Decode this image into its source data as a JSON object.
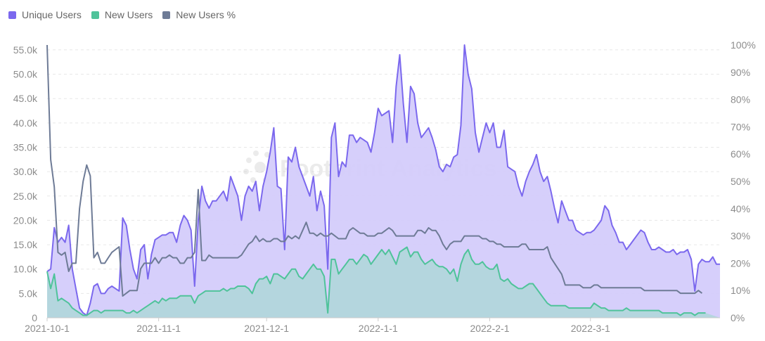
{
  "chart_data": {
    "type": "area",
    "series": [
      {
        "name": "Unique Users",
        "color": "#7b68ee",
        "fill": "#d4ccfb",
        "axis": "left",
        "values": [
          9.5,
          10,
          18.5,
          15.5,
          16.5,
          15.5,
          19,
          10,
          6,
          2,
          1,
          0.5,
          3,
          6.5,
          7,
          5,
          5,
          6,
          6.5,
          6,
          5.5,
          20.5,
          19,
          14,
          10,
          8,
          14,
          15,
          8,
          13,
          16,
          16.5,
          17,
          17,
          17.5,
          17.5,
          15.5,
          19,
          21,
          20,
          18,
          6.5,
          20,
          27,
          24,
          22.5,
          24,
          24,
          25,
          26,
          24,
          29,
          27,
          25,
          20,
          25,
          27,
          26,
          28,
          22,
          27,
          30,
          34,
          39,
          27,
          26.5,
          14,
          33,
          32,
          35,
          31,
          29,
          27,
          25,
          29,
          22,
          26,
          23,
          10,
          37,
          40,
          29,
          32,
          31,
          37.5,
          37.5,
          36,
          37,
          36.5,
          36,
          34,
          38,
          43,
          41.5,
          42,
          42.5,
          36,
          47.5,
          54,
          44,
          36,
          47.5,
          46,
          40,
          37,
          38,
          39,
          37,
          34.5,
          31,
          30,
          31.5,
          31,
          33,
          33.5,
          39.5,
          56,
          50,
          47,
          38,
          34,
          37,
          40,
          38,
          40,
          35,
          35,
          38.5,
          31,
          30.5,
          30,
          27,
          25,
          28,
          30,
          31.5,
          33.5,
          30,
          28,
          29,
          26,
          22.5,
          19.5,
          24,
          22,
          20,
          20,
          18,
          17.5,
          17,
          17.5,
          17.5,
          18,
          19,
          20,
          23,
          22,
          19,
          17.5,
          15.5,
          15.5,
          14,
          15,
          16,
          17,
          18,
          17.5,
          15.5,
          14,
          14,
          14.5,
          14,
          13.5,
          13.5,
          14,
          13,
          13.5,
          13.5,
          14,
          12,
          5.5,
          11,
          12,
          11.5,
          11.5,
          12.5,
          11,
          11
        ]
      },
      {
        "name": "New Users",
        "color": "#4fc39a",
        "fill": "#b2d6dc",
        "axis": "left",
        "values": [
          9.5,
          6,
          9,
          3.5,
          4,
          3.5,
          3,
          2,
          1.5,
          1,
          0.5,
          0.5,
          1,
          1.5,
          1.5,
          1,
          1.5,
          1.5,
          1.5,
          1.5,
          1.5,
          1.5,
          1,
          1,
          1.5,
          1,
          1.5,
          2,
          2.5,
          3,
          3.5,
          3,
          4,
          3.5,
          4,
          4,
          4,
          4.5,
          4.5,
          4.5,
          4.5,
          3,
          4.5,
          5,
          5.5,
          5.5,
          5.5,
          5.5,
          5.5,
          6,
          5.5,
          6,
          6,
          6.5,
          6.5,
          6.5,
          6,
          5,
          7,
          8,
          8,
          8.5,
          7,
          9,
          9,
          8.5,
          8,
          9,
          10,
          10,
          8.5,
          8,
          9,
          10,
          11,
          10,
          10,
          8.5,
          1,
          12,
          12,
          9,
          10,
          11,
          12,
          12,
          11,
          12,
          13,
          12.5,
          11,
          12,
          13,
          14,
          13,
          14,
          12.5,
          11,
          13.5,
          14,
          14.5,
          12.5,
          13.5,
          13.5,
          12,
          11,
          11.5,
          12,
          11,
          10.5,
          10.5,
          10,
          9,
          10,
          7.5,
          11,
          13,
          14,
          12,
          11,
          11,
          11.5,
          10.5,
          10,
          10,
          11,
          8,
          7.5,
          8,
          7,
          6.5,
          6,
          6,
          6.5,
          7,
          7,
          6,
          5,
          4,
          3,
          2.5,
          2.5,
          2.5,
          2.5,
          2.5,
          2,
          2,
          2,
          2,
          2,
          2,
          2,
          3,
          2.5,
          2,
          2,
          1.5,
          1.5,
          1.5,
          1.5,
          1.5,
          2,
          1.5,
          1.5,
          1.5,
          1.5,
          1.5,
          1.5,
          1.5,
          1.5,
          1.5,
          1,
          1,
          1,
          1,
          1,
          0.5,
          1,
          1,
          1,
          0.5,
          1,
          1,
          1
        ]
      },
      {
        "name": "New Users %",
        "color": "#6e7b96",
        "axis": "right",
        "values": [
          100,
          58,
          48,
          24,
          23,
          24,
          17,
          20,
          20,
          40,
          50,
          56,
          52,
          22,
          24,
          20,
          20,
          22,
          24,
          25,
          26,
          8,
          9,
          10,
          10,
          10,
          18,
          20,
          20,
          20,
          22,
          20,
          22,
          22,
          23,
          22,
          22,
          20,
          20,
          22,
          22,
          24,
          47,
          21,
          21,
          23,
          22,
          22,
          22,
          22,
          22,
          22,
          22,
          22,
          23,
          25,
          27,
          28,
          30,
          28,
          29,
          28,
          28,
          29,
          29,
          28,
          28,
          30,
          29,
          30,
          29,
          32,
          35,
          31,
          31,
          30,
          31,
          30,
          30,
          31,
          30,
          29,
          29,
          29,
          32,
          33,
          32,
          31,
          31,
          30,
          30,
          30,
          31,
          31,
          32,
          33,
          32,
          30,
          30,
          30,
          30,
          30,
          30,
          32,
          32,
          31,
          33,
          32,
          32,
          30,
          27,
          25,
          27,
          28,
          28,
          28,
          30,
          30,
          30,
          30,
          30,
          29,
          29,
          28,
          28,
          27,
          27,
          26,
          26,
          26,
          26,
          26,
          27,
          27,
          25,
          25,
          25,
          25,
          25,
          26,
          22,
          20,
          18,
          16,
          12,
          12,
          12,
          12,
          12,
          11,
          11,
          11,
          12,
          12,
          11,
          11,
          11,
          11,
          11,
          11,
          11,
          11,
          11,
          11,
          11,
          11,
          10,
          10,
          10,
          10,
          10,
          10,
          10,
          10,
          10,
          10,
          9,
          9,
          9,
          9,
          9,
          10,
          9
        ]
      }
    ],
    "x_tick_labels": [
      "2021-10-1",
      "2021-11-1",
      "2021-12-1",
      "2022-1-1",
      "2022-2-1",
      "2022-3-1"
    ],
    "y_left_tick_labels": [
      "0",
      "5.0k",
      "10.0k",
      "15.0k",
      "20.0k",
      "25.0k",
      "30.0k",
      "35.0k",
      "40.0k",
      "45.0k",
      "50.0k",
      "55.0k"
    ],
    "y_left_unit": "thousands",
    "ylim_left": [
      0,
      56
    ],
    "y_right_tick_labels": [
      "0%",
      "10%",
      "20%",
      "30%",
      "40%",
      "50%",
      "60%",
      "70%",
      "80%",
      "90%",
      "100%"
    ],
    "ylim_right": [
      0,
      100
    ],
    "grid": true,
    "legend_position": "top-left",
    "watermark": "Footprint Analytics"
  }
}
